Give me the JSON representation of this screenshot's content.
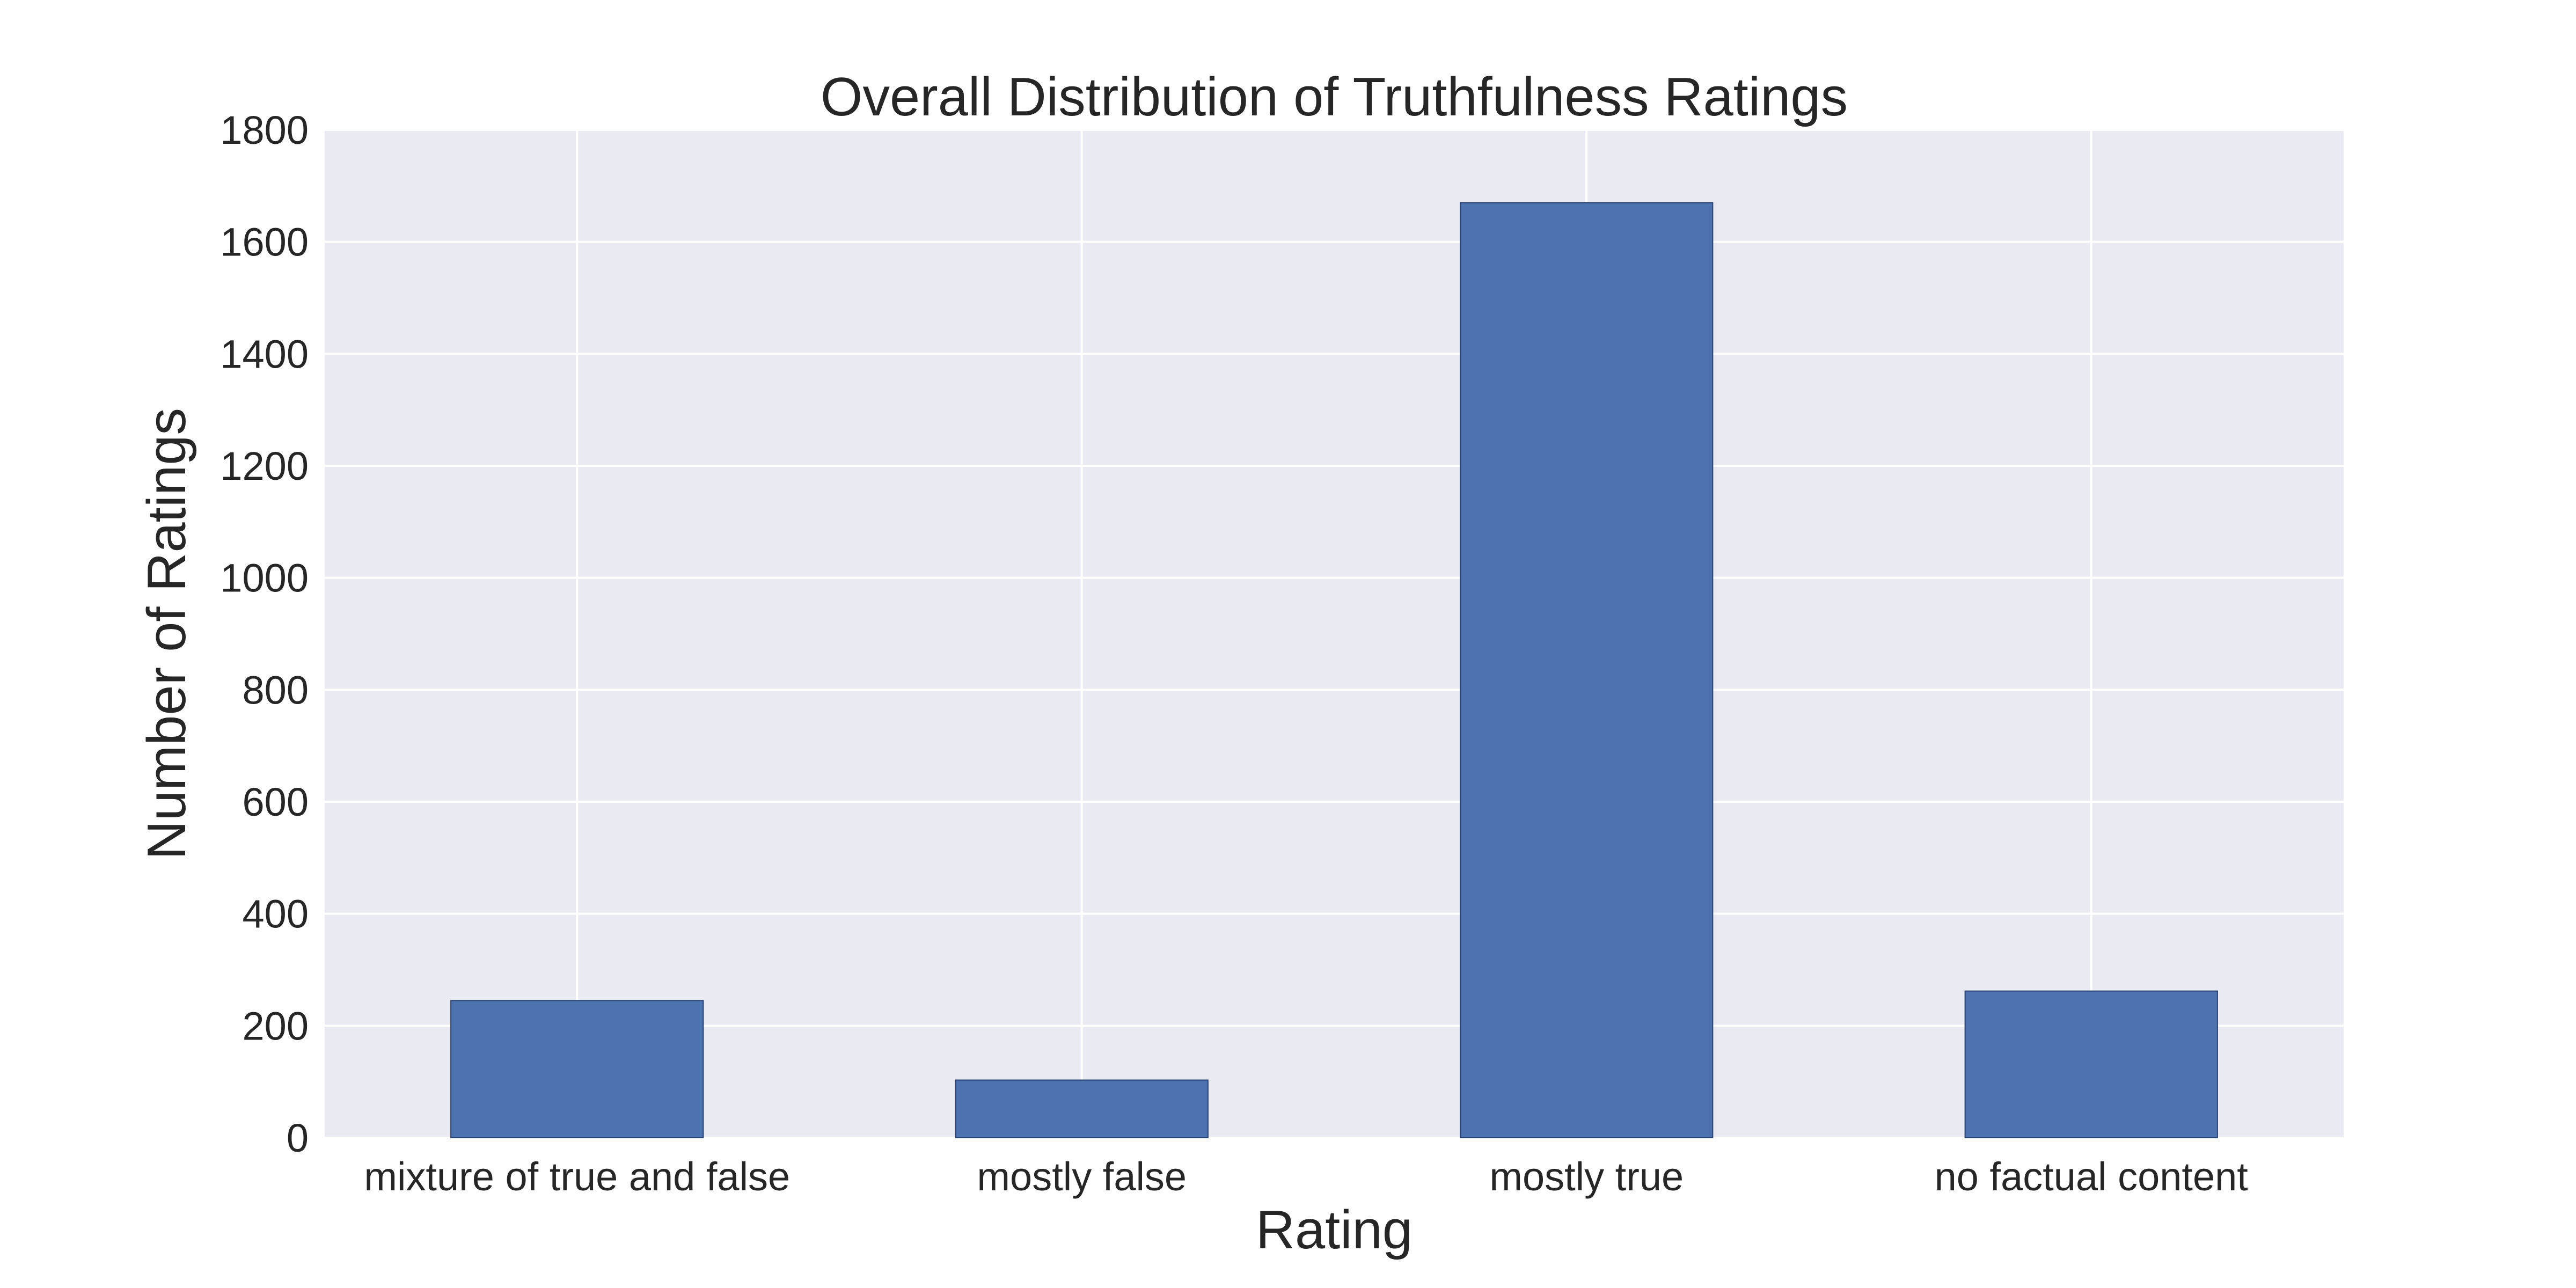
{
  "chart_data": {
    "type": "bar",
    "title": "Overall Distribution of Truthfulness Ratings",
    "xlabel": "Rating",
    "ylabel": "Number of Ratings",
    "categories": [
      "mixture of true and false",
      "mostly false",
      "mostly true",
      "no factual content"
    ],
    "values": [
      245,
      103,
      1670,
      262
    ],
    "ylim": [
      0,
      1800
    ],
    "yticks": [
      0,
      200,
      400,
      600,
      800,
      1000,
      1200,
      1400,
      1600,
      1800
    ],
    "grid": true,
    "legend": "none",
    "colors": {
      "bar": "#4c72b0",
      "bar_edge": "#2b4270",
      "background": "#eaeaf2",
      "grid": "#ffffff",
      "text": "#262626"
    }
  }
}
